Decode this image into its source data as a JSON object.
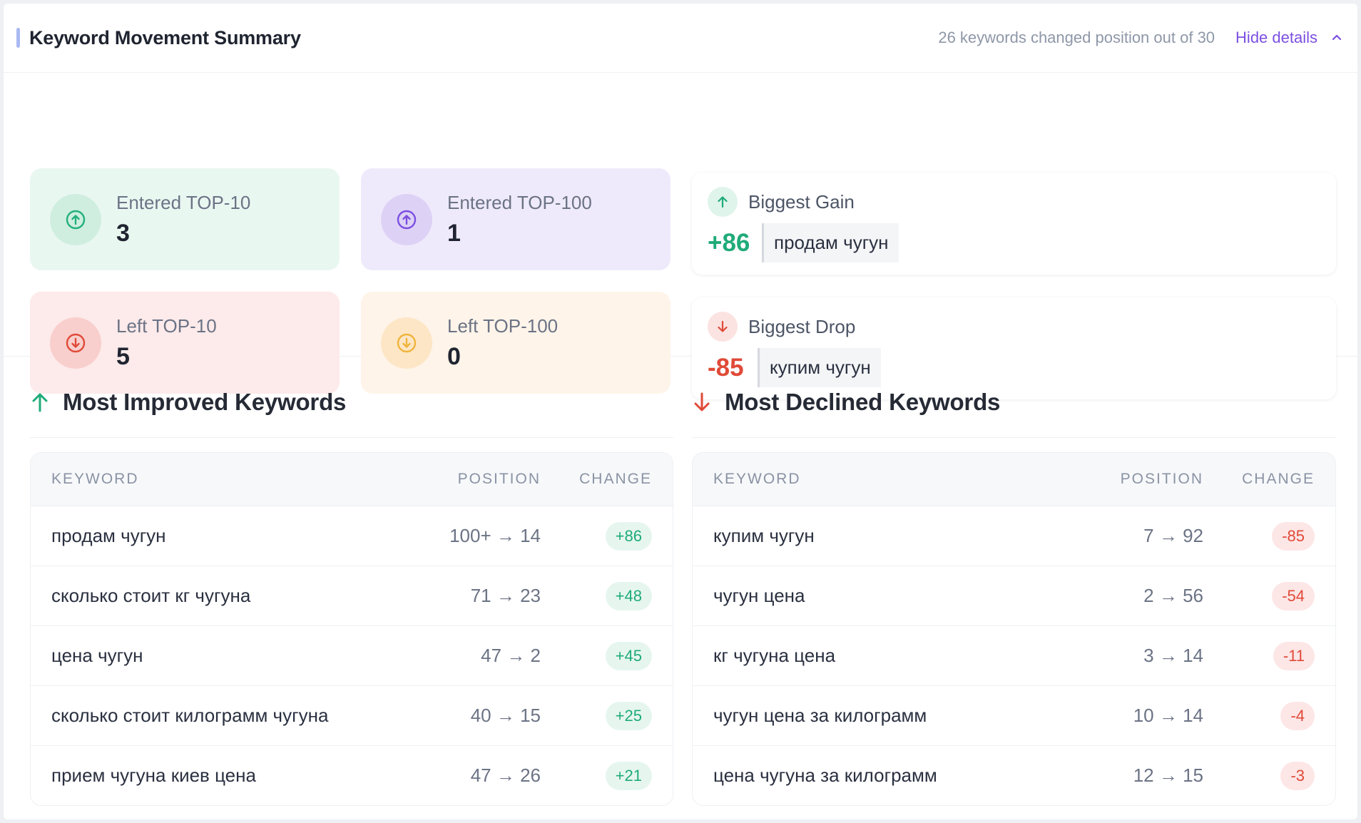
{
  "header": {
    "title": "Keyword Movement Summary",
    "changed_text": "26 keywords changed position out of 30",
    "hide_label": "Hide details",
    "hide_icon": "chevron-up-icon"
  },
  "stats": {
    "entered_top10": {
      "label": "Entered TOP-10",
      "value": "3",
      "icon": "arrow-up-circle-icon",
      "color": "#22b07d"
    },
    "entered_top100": {
      "label": "Entered TOP-100",
      "value": "1",
      "icon": "arrow-up-circle-icon",
      "color": "#7c4fe0"
    },
    "left_top10": {
      "label": "Left TOP-10",
      "value": "5",
      "icon": "arrow-down-circle-icon",
      "color": "#e04a38"
    },
    "left_top100": {
      "label": "Left TOP-100",
      "value": "0",
      "icon": "arrow-down-circle-icon",
      "color": "#f0b43c"
    }
  },
  "highlights": {
    "gain": {
      "title": "Biggest Gain",
      "value": "+86",
      "keyword": "продам чугун",
      "color": "#1fab78"
    },
    "drop": {
      "title": "Biggest Drop",
      "value": "-85",
      "keyword": "купим чугун",
      "color": "#e04a38"
    }
  },
  "improved": {
    "title": "Most Improved Keywords",
    "columns": {
      "keyword": "KEYWORD",
      "position": "POSITION",
      "change": "CHANGE"
    },
    "rows": [
      {
        "keyword": "продам чугун",
        "position": "100+ → 14",
        "change": "+86"
      },
      {
        "keyword": "сколько стоит кг чугуна",
        "position": "71 → 23",
        "change": "+48"
      },
      {
        "keyword": "цена чугун",
        "position": "47 → 2",
        "change": "+45"
      },
      {
        "keyword": "сколько стоит килограмм чугуна",
        "position": "40 → 15",
        "change": "+25"
      },
      {
        "keyword": "прием чугуна киев цена",
        "position": "47 → 26",
        "change": "+21"
      }
    ]
  },
  "declined": {
    "title": "Most Declined Keywords",
    "columns": {
      "keyword": "KEYWORD",
      "position": "POSITION",
      "change": "CHANGE"
    },
    "rows": [
      {
        "keyword": "купим чугун",
        "position": "7 → 92",
        "change": "-85"
      },
      {
        "keyword": "чугун цена",
        "position": "2 → 56",
        "change": "-54"
      },
      {
        "keyword": "кг чугуна цена",
        "position": "3 → 14",
        "change": "-11"
      },
      {
        "keyword": "чугун цена за килограмм",
        "position": "10 → 14",
        "change": "-4"
      },
      {
        "keyword": "цена чугуна за килограмм",
        "position": "12 → 15",
        "change": "-3"
      }
    ]
  }
}
